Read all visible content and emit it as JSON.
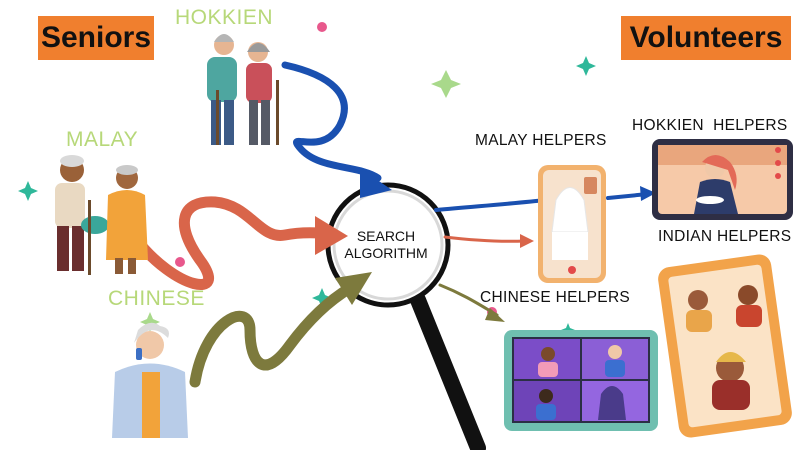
{
  "tags": {
    "left": "Seniors",
    "right": "Volunteers"
  },
  "languages": {
    "hokkien": "HOKKIEN",
    "malay": "MALAY",
    "chinese": "CHINESE"
  },
  "center": {
    "line1": "SEARCH",
    "line2": "ALGORITHM"
  },
  "helpers": {
    "malay": "MALAY HELPERS",
    "hokkien": "HOKKIEN  HELPERS",
    "indian": "INDIAN HELPERS",
    "chinese": "CHINESE HELPERS"
  },
  "colors": {
    "tag": "#f07f2e",
    "language_label": "#b7d879",
    "arrow_blue": "#1a50b0",
    "arrow_red": "#d9654a",
    "arrow_olive": "#7d7a3d",
    "phone": "#f2b26e",
    "tablet_teal": "#6fbfb0",
    "tablet_orange": "#f2a34a",
    "sparkle_teal": "#2fb89a",
    "sparkle_green": "#a9d98b",
    "dot_pink": "#e8588c"
  }
}
